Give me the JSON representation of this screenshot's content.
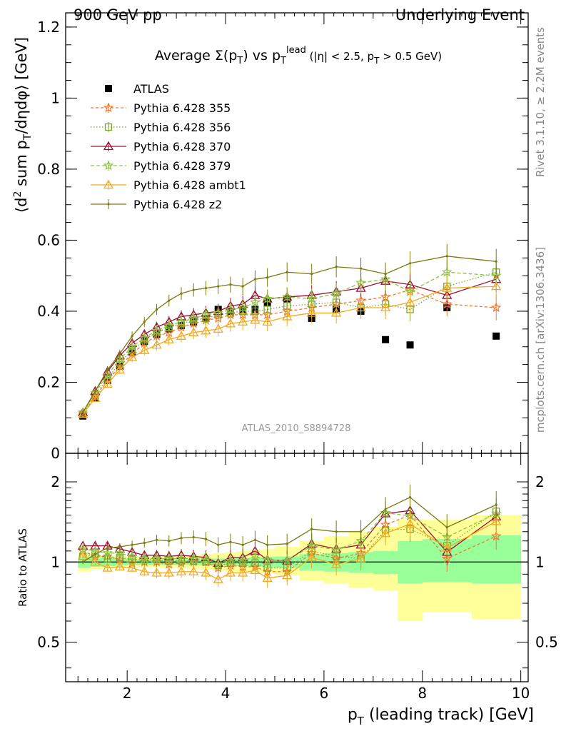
{
  "header": {
    "left": "900 GeV pp",
    "right": "Underlying Event"
  },
  "side_labels": {
    "top": "Rivet 3.1.10, ≥ 2.2M events",
    "bottom": "mcplots.cern.ch [arXiv:1306.3436]"
  },
  "watermark": "ATLAS_2010_S8894728",
  "chart_data": [
    {
      "type": "scatter",
      "panel": "main",
      "title": "Average Σ(p_T) vs p_T^lead (|η| < 2.5, p_T > 0.5 GeV)",
      "title_parts": {
        "a": "Average ",
        "b": "Σ(p",
        "b_sub": "T",
        "c": ") vs p",
        "c_sub": "T",
        "c_sup": "lead",
        "d": " (|η| < 2.5, p",
        "d_sub": "T",
        "e": " > 0.5 GeV)"
      },
      "ylabel": "⟨d² sum p_T/dηdφ⟩ [GeV]",
      "ylabel_parts": {
        "a": "⟨d",
        "a_sup": "2",
        "b": " sum p",
        "b_sub": "T",
        "c": "/dηdφ⟩ [GeV]"
      },
      "xlim": [
        0.75,
        10.15
      ],
      "ylim": [
        0,
        1.24
      ],
      "yticks": [
        "0",
        "0.2",
        "0.4",
        "0.6",
        "0.8",
        "1",
        "1.2"
      ],
      "x": [
        1.1,
        1.35,
        1.6,
        1.85,
        2.1,
        2.35,
        2.6,
        2.85,
        3.1,
        3.35,
        3.6,
        3.85,
        4.1,
        4.35,
        4.6,
        4.85,
        5.25,
        5.75,
        6.25,
        6.75,
        7.25,
        7.75,
        8.5,
        9.5
      ],
      "legend_position": "top-left",
      "series": [
        {
          "name": "ATLAS",
          "color": "#000000",
          "marker": "square",
          "dash": "none",
          "values": [
            0.105,
            0.155,
            0.205,
            0.245,
            0.285,
            0.315,
            0.335,
            0.35,
            0.36,
            0.37,
            0.38,
            0.405,
            0.4,
            0.405,
            0.405,
            0.425,
            0.435,
            0.38,
            0.405,
            0.4,
            0.32,
            0.305,
            0.41,
            0.33
          ]
        },
        {
          "name": "Pythia 6.428 355",
          "color": "#f07830",
          "marker": "star",
          "dash": "4,3",
          "values": [
            0.11,
            0.16,
            0.205,
            0.245,
            0.28,
            0.31,
            0.33,
            0.34,
            0.355,
            0.365,
            0.375,
            0.38,
            0.39,
            0.39,
            0.39,
            0.39,
            0.4,
            0.41,
            0.42,
            0.43,
            0.44,
            0.46,
            0.42,
            0.41
          ]
        },
        {
          "name": "Pythia 6.428 356",
          "color": "#7aa62a",
          "marker": "open-square",
          "dash": "1.5,2.5",
          "values": [
            0.11,
            0.165,
            0.21,
            0.255,
            0.29,
            0.32,
            0.34,
            0.355,
            0.365,
            0.375,
            0.38,
            0.39,
            0.395,
            0.4,
            0.4,
            0.405,
            0.415,
            0.42,
            0.425,
            0.41,
            0.42,
            0.405,
            0.47,
            0.51
          ]
        },
        {
          "name": "Pythia 6.428 370",
          "color": "#9a1030",
          "marker": "open-triangle",
          "dash": "none",
          "values": [
            0.115,
            0.175,
            0.23,
            0.275,
            0.31,
            0.335,
            0.355,
            0.37,
            0.385,
            0.39,
            0.395,
            0.4,
            0.415,
            0.42,
            0.445,
            0.435,
            0.44,
            0.445,
            0.455,
            0.465,
            0.485,
            0.475,
            0.445,
            0.49
          ]
        },
        {
          "name": "Pythia 6.428 379",
          "color": "#8cc43c",
          "marker": "star",
          "dash": "5,3",
          "values": [
            0.115,
            0.17,
            0.22,
            0.265,
            0.3,
            0.325,
            0.345,
            0.36,
            0.37,
            0.38,
            0.39,
            0.395,
            0.405,
            0.41,
            0.425,
            0.435,
            0.44,
            0.435,
            0.45,
            0.48,
            0.49,
            0.455,
            0.51,
            0.5
          ]
        },
        {
          "name": "Pythia 6.428 ambt1",
          "color": "#f4a820",
          "marker": "open-triangle",
          "dash": "none",
          "values": [
            0.11,
            0.155,
            0.195,
            0.235,
            0.27,
            0.29,
            0.305,
            0.32,
            0.33,
            0.34,
            0.345,
            0.35,
            0.365,
            0.37,
            0.375,
            0.37,
            0.385,
            0.395,
            0.395,
            0.41,
            0.41,
            0.425,
            0.465,
            0.47
          ]
        },
        {
          "name": "Pythia 6.428 z2",
          "color": "#7a7a10",
          "marker": "dot",
          "dash": "none",
          "values": [
            0.115,
            0.175,
            0.235,
            0.28,
            0.33,
            0.37,
            0.405,
            0.43,
            0.45,
            0.46,
            0.465,
            0.47,
            0.475,
            0.47,
            0.49,
            0.495,
            0.51,
            0.505,
            0.525,
            0.52,
            0.505,
            0.535,
            0.555,
            0.54
          ]
        }
      ]
    },
    {
      "type": "line",
      "panel": "ratio",
      "ylabel": "Ratio to ATLAS",
      "ylim": [
        0.355,
        2.56
      ],
      "log_y": true,
      "yticks": [
        "0.5",
        "1",
        "2"
      ],
      "xlim": [
        0.75,
        10.15
      ],
      "xticks": [
        "2",
        "4",
        "6",
        "8",
        "10"
      ],
      "xlabel": "p_T (leading track) [GeV]",
      "xlabel_parts": {
        "a": "p",
        "a_sub": "T",
        "b": " (leading track) [GeV]"
      },
      "reference_line": 1,
      "band_edges": [
        1.0,
        1.25,
        1.5,
        1.75,
        2.0,
        2.25,
        2.5,
        2.75,
        3.0,
        3.25,
        3.5,
        3.75,
        4.0,
        4.25,
        4.5,
        4.75,
        5.0,
        5.5,
        6.0,
        6.5,
        7.0,
        7.5,
        8.0,
        9.0,
        10.0
      ],
      "stat_band": {
        "name": "stat",
        "color": "#99ff99",
        "low": [
          0.95,
          0.96,
          0.965,
          0.97,
          0.975,
          0.975,
          0.975,
          0.975,
          0.975,
          0.975,
          0.97,
          0.97,
          0.965,
          0.965,
          0.96,
          0.955,
          0.95,
          0.93,
          0.92,
          0.91,
          0.9,
          0.83,
          0.84,
          0.83
        ],
        "high": [
          1.05,
          1.04,
          1.035,
          1.03,
          1.025,
          1.025,
          1.025,
          1.025,
          1.025,
          1.025,
          1.03,
          1.03,
          1.035,
          1.035,
          1.04,
          1.045,
          1.05,
          1.07,
          1.08,
          1.09,
          1.1,
          1.2,
          1.22,
          1.26
        ]
      },
      "syst_band": {
        "name": "syst",
        "color": "#ffff99",
        "low": [
          0.92,
          0.94,
          0.945,
          0.95,
          0.955,
          0.955,
          0.95,
          0.95,
          0.945,
          0.94,
          0.935,
          0.93,
          0.92,
          0.915,
          0.91,
          0.905,
          0.89,
          0.85,
          0.83,
          0.8,
          0.78,
          0.6,
          0.65,
          0.61
        ],
        "high": [
          1.08,
          1.06,
          1.055,
          1.05,
          1.05,
          1.05,
          1.05,
          1.055,
          1.06,
          1.065,
          1.07,
          1.08,
          1.09,
          1.1,
          1.11,
          1.12,
          1.14,
          1.2,
          1.25,
          1.3,
          1.36,
          1.45,
          1.44,
          1.5
        ]
      },
      "series": [
        {
          "name": "Pythia 6.428 355",
          "color": "#f07830",
          "marker": "star",
          "dash": "4,3",
          "values": [
            1.1,
            1.05,
            1.05,
            1.02,
            0.99,
            1.0,
            1.0,
            0.98,
            0.99,
            1.0,
            1.0,
            0.95,
            0.97,
            0.96,
            0.96,
            0.92,
            0.92,
            1.08,
            1.03,
            1.08,
            1.38,
            1.5,
            1.03,
            1.25
          ]
        },
        {
          "name": "Pythia 6.428 356",
          "color": "#7aa62a",
          "marker": "open-square",
          "dash": "1.5,2.5",
          "values": [
            1.05,
            1.07,
            1.03,
            1.04,
            1.02,
            1.02,
            1.02,
            1.01,
            1.01,
            1.01,
            1.0,
            0.97,
            0.99,
            0.99,
            0.99,
            0.95,
            0.95,
            1.1,
            1.05,
            1.03,
            1.32,
            1.33,
            1.15,
            1.55
          ]
        },
        {
          "name": "Pythia 6.428 370",
          "color": "#9a1030",
          "marker": "open-triangle",
          "dash": "none",
          "values": [
            1.15,
            1.15,
            1.15,
            1.12,
            1.09,
            1.06,
            1.06,
            1.05,
            1.06,
            1.05,
            1.04,
            0.99,
            1.04,
            1.04,
            1.1,
            1.02,
            1.01,
            1.17,
            1.12,
            1.16,
            1.52,
            1.56,
            1.09,
            1.48
          ]
        },
        {
          "name": "Pythia 6.428 379",
          "color": "#8cc43c",
          "marker": "star",
          "dash": "5,3",
          "values": [
            1.12,
            1.1,
            1.08,
            1.08,
            1.05,
            1.03,
            1.03,
            1.03,
            1.03,
            1.03,
            1.02,
            0.98,
            1.01,
            1.01,
            1.05,
            1.02,
            1.01,
            1.15,
            1.11,
            1.2,
            1.53,
            1.49,
            1.24,
            1.52
          ]
        },
        {
          "name": "Pythia 6.428 ambt1",
          "color": "#f4a820",
          "marker": "open-triangle",
          "dash": "none",
          "values": [
            1.05,
            1.0,
            0.95,
            0.96,
            0.95,
            0.92,
            0.91,
            0.91,
            0.92,
            0.92,
            0.91,
            0.86,
            0.91,
            0.91,
            0.93,
            0.87,
            0.89,
            1.04,
            0.98,
            1.03,
            1.28,
            1.39,
            1.13,
            1.42
          ]
        },
        {
          "name": "Pythia 6.428 z2",
          "color": "#7a7a10",
          "marker": "dot",
          "dash": "none",
          "values": [
            1.0,
            1.07,
            1.13,
            1.14,
            1.16,
            1.18,
            1.21,
            1.2,
            1.23,
            1.24,
            1.22,
            1.16,
            1.19,
            1.16,
            1.21,
            1.16,
            1.17,
            1.33,
            1.3,
            1.3,
            1.58,
            1.75,
            1.35,
            1.64
          ]
        }
      ]
    }
  ]
}
